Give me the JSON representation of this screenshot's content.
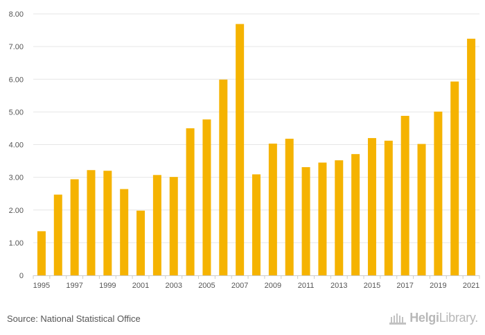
{
  "chart_data": {
    "type": "bar",
    "title": "",
    "xlabel": "",
    "ylabel": "",
    "ylim": [
      0,
      8
    ],
    "yticks": [
      {
        "value": 0,
        "label": "0"
      },
      {
        "value": 1,
        "label": "1.00"
      },
      {
        "value": 2,
        "label": "2.00"
      },
      {
        "value": 3,
        "label": "3.00"
      },
      {
        "value": 4,
        "label": "4.00"
      },
      {
        "value": 5,
        "label": "5.00"
      },
      {
        "value": 6,
        "label": "6.00"
      },
      {
        "value": 7,
        "label": "7.00"
      },
      {
        "value": 8,
        "label": "8.00"
      }
    ],
    "categories": [
      "1995",
      "1996",
      "1997",
      "1998",
      "1999",
      "2000",
      "2001",
      "2002",
      "2003",
      "2004",
      "2005",
      "2006",
      "2007",
      "2008",
      "2009",
      "2010",
      "2011",
      "2012",
      "2013",
      "2014",
      "2015",
      "2016",
      "2017",
      "2018",
      "2019",
      "2020",
      "2021"
    ],
    "xtick_labels": [
      "1995",
      "1997",
      "1999",
      "2001",
      "2003",
      "2005",
      "2007",
      "2009",
      "2011",
      "2013",
      "2015",
      "2017",
      "2019",
      "2021"
    ],
    "values": [
      1.35,
      2.47,
      2.94,
      3.22,
      3.2,
      2.64,
      1.98,
      3.07,
      3.01,
      4.5,
      4.77,
      5.99,
      7.69,
      3.09,
      4.03,
      4.18,
      3.31,
      3.45,
      3.52,
      3.71,
      4.2,
      4.12,
      4.88,
      4.02,
      5.01,
      5.93,
      7.24
    ],
    "bar_color": "#f5b301",
    "grid": true
  },
  "footer": {
    "source": "Source: National Statistical Office",
    "brand_part1": "Helgi",
    "brand_part2": "Library."
  }
}
